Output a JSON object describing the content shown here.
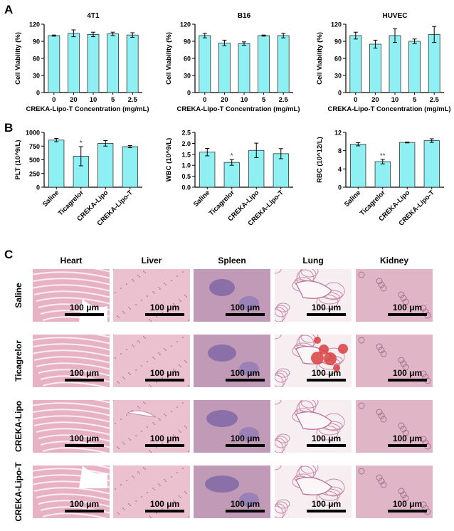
{
  "panels": {
    "a": "A",
    "b": "B",
    "c": "C"
  },
  "chart_data": [
    {
      "type": "bar",
      "title": "4T1",
      "xlabel": "CREKA-Lipo-T Concentration (mg/mL)",
      "ylabel": "Cell Viability (%)",
      "categories": [
        "0",
        "20",
        "10",
        "5",
        "2.5"
      ],
      "values": [
        100,
        104,
        102,
        103,
        101
      ],
      "errors": [
        1,
        6,
        4,
        3,
        4
      ],
      "ylim": [
        0,
        120
      ],
      "yticks": [
        "0",
        "30",
        "60",
        "90",
        "120"
      ],
      "sig": [
        "",
        "",
        "",
        "",
        ""
      ]
    },
    {
      "type": "bar",
      "title": "B16",
      "xlabel": "CREKA-Lipo-T Concentration (mg/mL)",
      "ylabel": "Cell Viability (%)",
      "categories": [
        "0",
        "20",
        "10",
        "5",
        "2.5"
      ],
      "values": [
        100,
        87,
        86,
        100,
        100
      ],
      "errors": [
        4,
        5,
        3,
        1,
        4
      ],
      "ylim": [
        0,
        120
      ],
      "yticks": [
        "0",
        "30",
        "60",
        "90",
        "120"
      ],
      "sig": [
        "",
        "",
        "",
        "",
        ""
      ]
    },
    {
      "type": "bar",
      "title": "HUVEC",
      "xlabel": "CREKA-Lipo-T Concentration (mg/mL)",
      "ylabel": "Cell Viability (%)",
      "categories": [
        "0",
        "20",
        "10",
        "5",
        "2.5"
      ],
      "values": [
        100,
        85,
        100,
        90,
        102
      ],
      "errors": [
        6,
        7,
        12,
        4,
        14
      ],
      "ylim": [
        0,
        120
      ],
      "yticks": [
        "0",
        "30",
        "60",
        "90",
        "120"
      ],
      "sig": [
        "",
        "",
        "",
        "",
        ""
      ]
    },
    {
      "type": "bar",
      "title": "",
      "xlabel": "",
      "ylabel": "PLT (10^9/L)",
      "categories": [
        "Saline",
        "Ticagrelor",
        "CREKA-Lipo",
        "CREKA-Lipo-T"
      ],
      "values": [
        860,
        565,
        800,
        740
      ],
      "errors": [
        30,
        175,
        50,
        20
      ],
      "ylim": [
        0,
        1000
      ],
      "yticks": [
        "0",
        "250",
        "500",
        "750",
        "1000"
      ],
      "sig": [
        "",
        "*",
        "",
        ""
      ]
    },
    {
      "type": "bar",
      "title": "",
      "xlabel": "",
      "ylabel": "WBC (10^9/L)",
      "categories": [
        "Saline",
        "Ticagrelor",
        "CREKA-Lipo",
        "CREKA-Lipo-T"
      ],
      "values": [
        1.6,
        1.13,
        1.68,
        1.53
      ],
      "errors": [
        0.17,
        0.13,
        0.33,
        0.23
      ],
      "ylim": [
        0,
        2.5
      ],
      "yticks": [
        "0.0",
        "0.5",
        "1.0",
        "1.5",
        "2.0",
        "2.5"
      ],
      "sig": [
        "",
        "*",
        "",
        ""
      ]
    },
    {
      "type": "bar",
      "title": "",
      "xlabel": "",
      "ylabel": "RBC (10^12/L)",
      "categories": [
        "Saline",
        "Ticagrelor",
        "CREKA-Lipo",
        "CREKA-Lipo-T"
      ],
      "values": [
        9.4,
        5.6,
        9.8,
        10.2
      ],
      "errors": [
        0.35,
        0.5,
        0.1,
        0.4
      ],
      "ylim": [
        0,
        12
      ],
      "yticks": [
        "0",
        "4",
        "8",
        "12"
      ],
      "sig": [
        "",
        "**",
        "",
        ""
      ]
    }
  ],
  "histology": {
    "columns": [
      "Heart",
      "Liver",
      "Spleen",
      "Lung",
      "Kidney"
    ],
    "rows": [
      "Saline",
      "Ticagrelor",
      "CREKA-Lipo",
      "CREKA-Lipo-T"
    ],
    "scale_label": "100 μm"
  },
  "colors": {
    "bar_fill": "#8ff0f4",
    "bar_stroke": "#333333",
    "tissue_pink": "#e7b3c4",
    "tissue_light": "#f2d9e0",
    "tissue_purple": "#8b6fa8",
    "lung_bg": "#f7eef1",
    "blood_red": "#d94040"
  }
}
